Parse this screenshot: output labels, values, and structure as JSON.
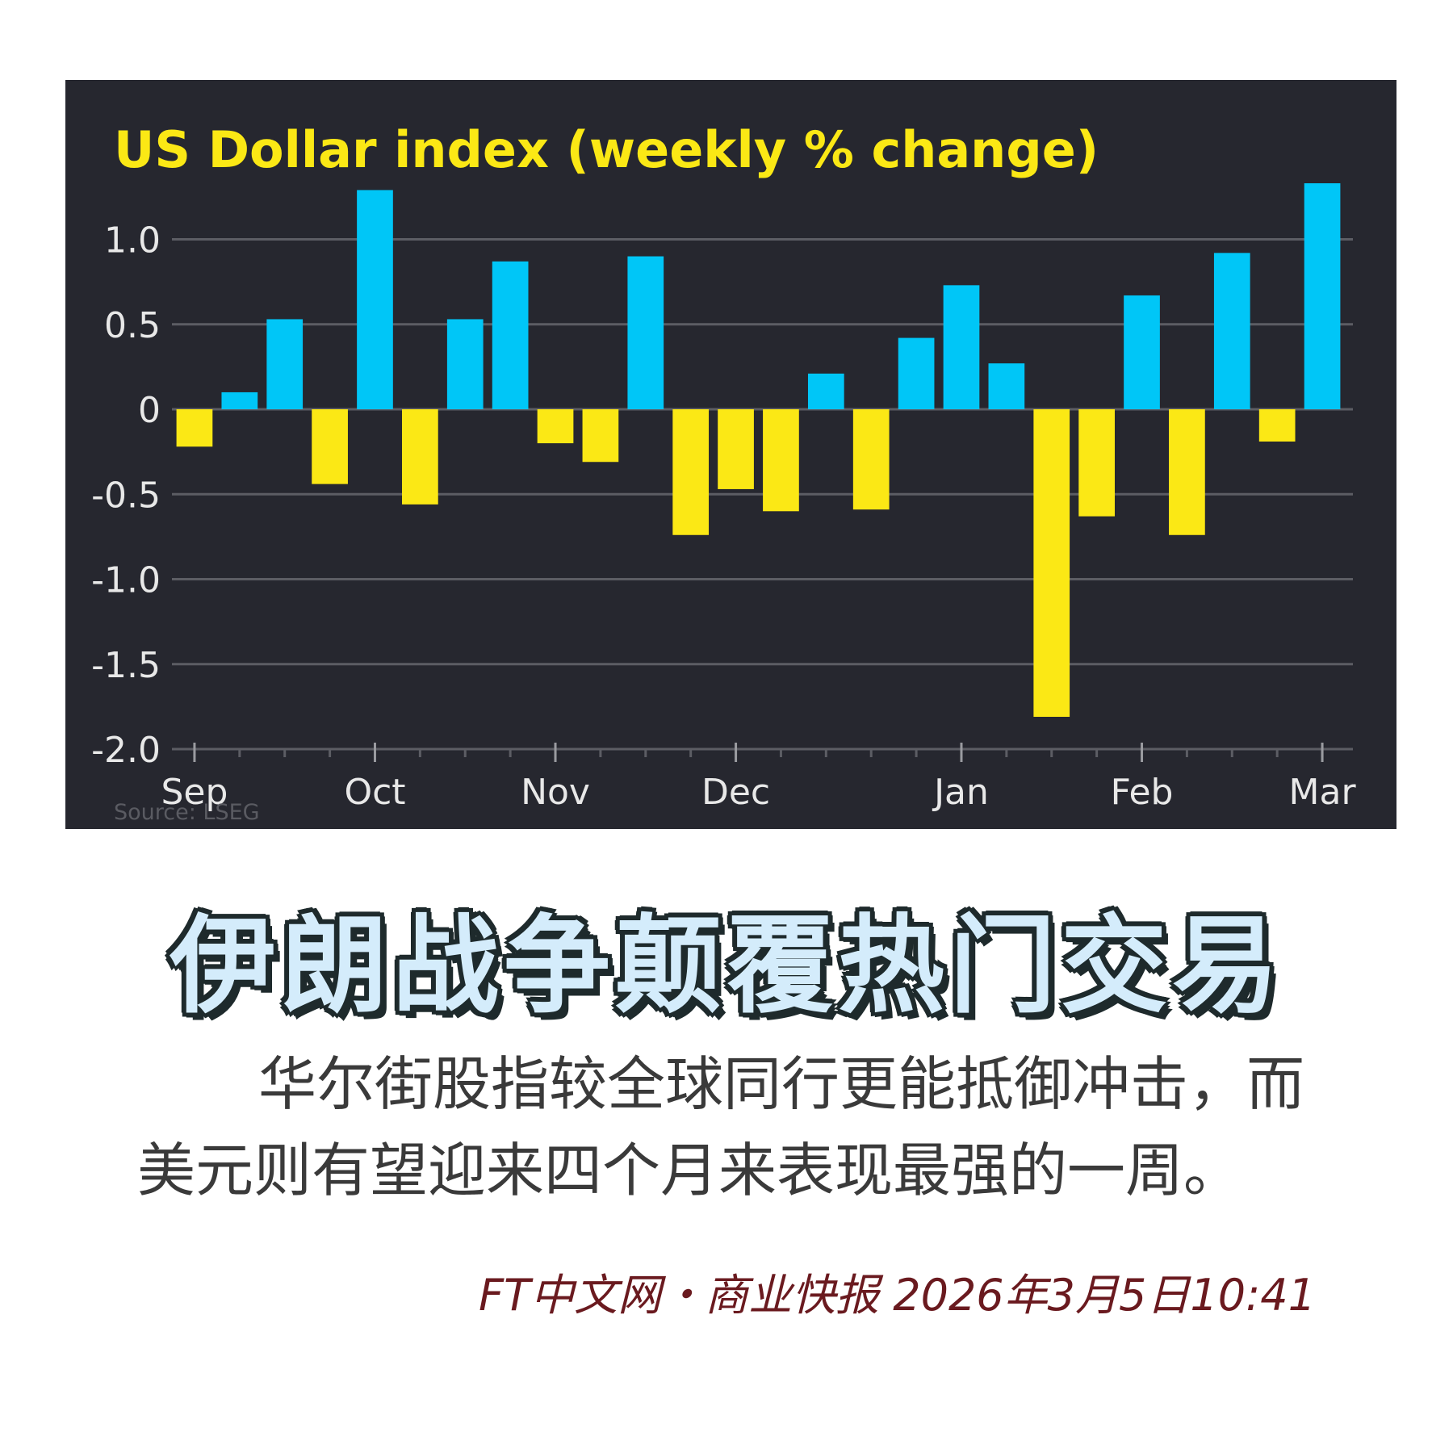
{
  "chart_data": {
    "type": "bar",
    "title": "US Dollar index (weekly % change)",
    "source": "Source: LSEG",
    "values": [
      -0.22,
      0.1,
      0.53,
      -0.44,
      1.29,
      -0.56,
      0.53,
      0.87,
      -0.2,
      -0.31,
      0.9,
      -0.74,
      -0.47,
      -0.6,
      0.21,
      -0.59,
      0.42,
      0.73,
      0.27,
      -1.81,
      -0.63,
      0.67,
      -0.74,
      0.92,
      -0.19,
      1.33
    ],
    "ylim": [
      -2.0,
      1.35
    ],
    "yticks": [
      "1.0",
      "0.5",
      "0",
      "-0.5",
      "-1.0",
      "-1.5",
      "-2.0"
    ],
    "ytick_values": [
      1.0,
      0.5,
      0,
      -0.5,
      -1.0,
      -1.5,
      -2.0
    ],
    "xtick_labels": [
      "Sep",
      "Oct",
      "Nov",
      "Dec",
      "Jan",
      "Feb",
      "Mar"
    ],
    "xtick_positions": [
      0,
      4,
      8,
      12,
      17,
      21,
      25
    ],
    "grid": true,
    "colors": {
      "positive": "#00c6f7",
      "negative": "#fbe815",
      "background": "#26272f",
      "grid": "#5c5d64",
      "text": "#e8e8e8"
    }
  },
  "headline": "伊朗战争颠覆热门交易",
  "body": {
    "line1": "华尔街股指较全球同行更能抵御冲击，而",
    "line2": "美元则有望迎来四个月来表现最强的一周。"
  },
  "byline": "FT中文网・商业快报 2026年3月5日10:41"
}
